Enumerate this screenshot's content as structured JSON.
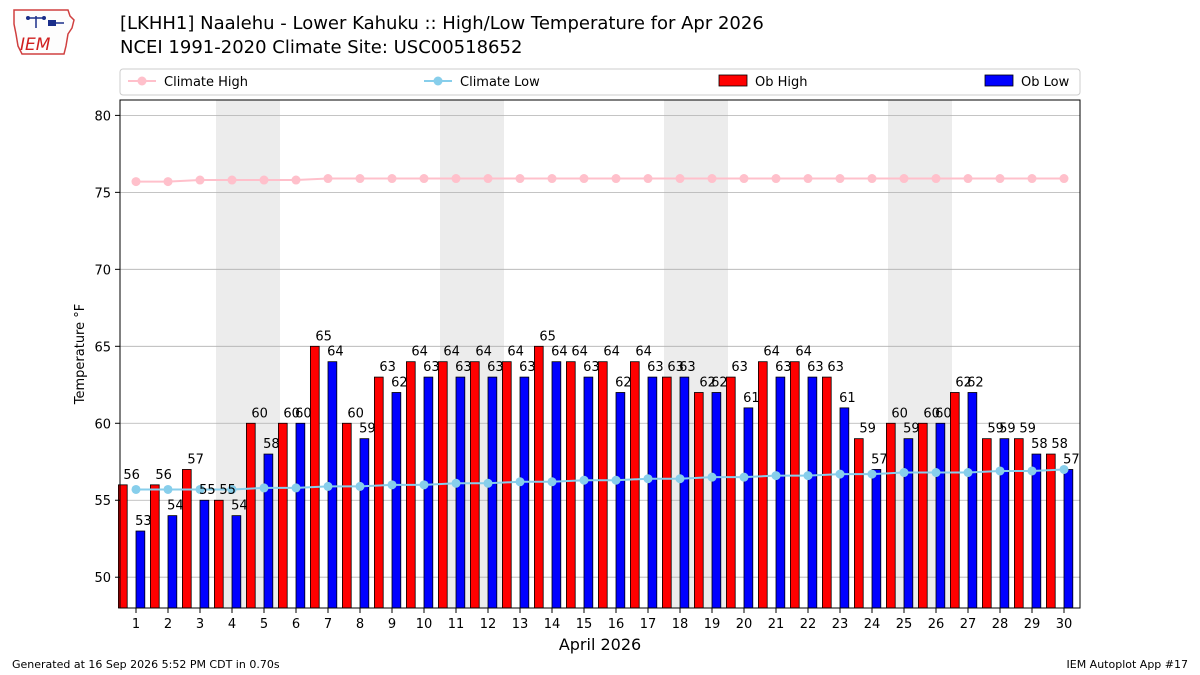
{
  "title": {
    "line1": "[LKHH1] Naalehu - Lower Kahuku :: High/Low Temperature for Apr 2026",
    "line2": "NCEI 1991-2020 Climate Site: USC00518652"
  },
  "logo": {
    "text": "IEM"
  },
  "footer": {
    "left": "Generated at 16 Sep 2026 5:52 PM CDT in 0.70s",
    "right": "IEM Autoplot App #17"
  },
  "colors": {
    "climate_high": "#ffc0cb",
    "climate_low": "#87ceeb",
    "ob_high": "#ff0000",
    "ob_low": "#0000ff",
    "weekend_shade": "#ececec",
    "grid": "#b0b0b0"
  },
  "chart_data": {
    "type": "bar",
    "xlabel": "April 2026",
    "ylabel": "Temperature °F",
    "ylim": [
      48,
      81
    ],
    "yticks": [
      50,
      55,
      60,
      65,
      70,
      75,
      80
    ],
    "grid": "horizontal",
    "legend_position": "top",
    "categories": [
      1,
      2,
      3,
      4,
      5,
      6,
      7,
      8,
      9,
      10,
      11,
      12,
      13,
      14,
      15,
      16,
      17,
      18,
      19,
      20,
      21,
      22,
      23,
      24,
      25,
      26,
      27,
      28,
      29,
      30
    ],
    "shaded_days": [
      [
        4,
        5
      ],
      [
        11,
        12
      ],
      [
        18,
        19
      ],
      [
        25,
        26
      ]
    ],
    "series": [
      {
        "name": "Climate High",
        "kind": "line",
        "values": [
          75.7,
          75.7,
          75.8,
          75.8,
          75.8,
          75.8,
          75.9,
          75.9,
          75.9,
          75.9,
          75.9,
          75.9,
          75.9,
          75.9,
          75.9,
          75.9,
          75.9,
          75.9,
          75.9,
          75.9,
          75.9,
          75.9,
          75.9,
          75.9,
          75.9,
          75.9,
          75.9,
          75.9,
          75.9,
          75.9
        ]
      },
      {
        "name": "Climate Low",
        "kind": "line",
        "values": [
          55.7,
          55.7,
          55.7,
          55.7,
          55.8,
          55.8,
          55.9,
          55.9,
          56.0,
          56.0,
          56.1,
          56.1,
          56.2,
          56.2,
          56.3,
          56.3,
          56.4,
          56.4,
          56.5,
          56.5,
          56.6,
          56.6,
          56.7,
          56.7,
          56.8,
          56.8,
          56.8,
          56.9,
          56.9,
          57.0
        ]
      },
      {
        "name": "Ob High",
        "kind": "bar",
        "values": [
          56,
          56,
          57,
          55,
          60,
          60,
          65,
          60,
          63,
          64,
          64,
          64,
          64,
          65,
          64,
          64,
          64,
          63,
          62,
          63,
          64,
          64,
          63,
          59,
          60,
          60,
          62,
          59,
          59,
          58
        ]
      },
      {
        "name": "Ob Low",
        "kind": "bar",
        "values": [
          53,
          54,
          55,
          54,
          58,
          60,
          64,
          59,
          62,
          63,
          63,
          63,
          63,
          64,
          63,
          62,
          63,
          63,
          62,
          61,
          63,
          63,
          61,
          57,
          59,
          60,
          62,
          59,
          58,
          57
        ]
      }
    ]
  }
}
